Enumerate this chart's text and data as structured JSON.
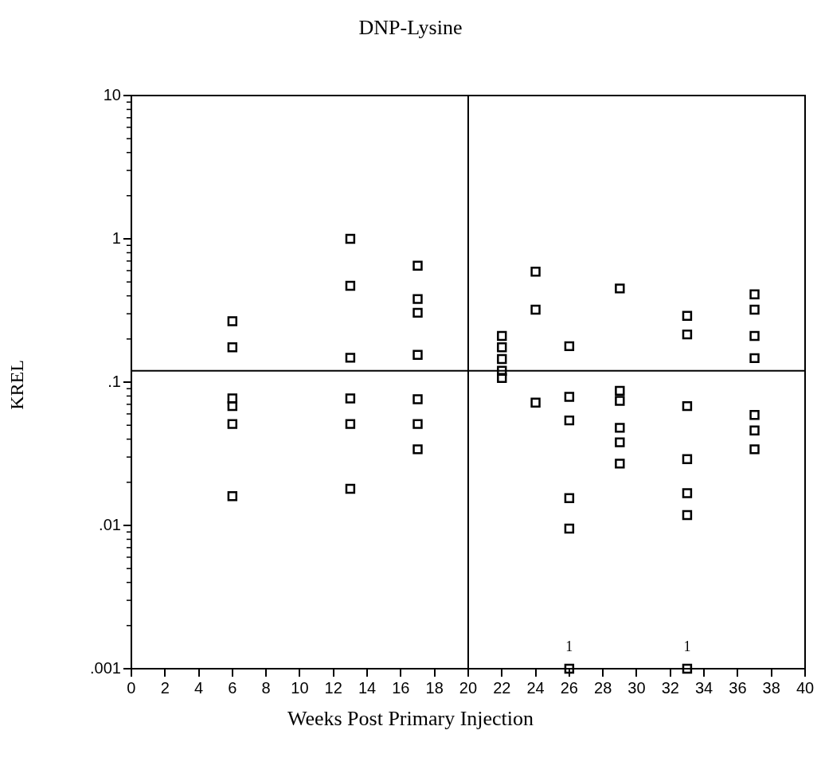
{
  "chart_data": {
    "type": "scatter",
    "title": "DNP-Lysine",
    "xlabel": "Weeks Post Primary Injection",
    "ylabel": "KREL",
    "log": "y",
    "marker": "square",
    "grid": false,
    "legend": false,
    "xlim": [
      0,
      40
    ],
    "xticks": [
      0,
      2,
      4,
      6,
      8,
      10,
      12,
      14,
      16,
      18,
      20,
      22,
      24,
      26,
      28,
      30,
      32,
      34,
      36,
      38,
      40
    ],
    "ylim": [
      0.001,
      10
    ],
    "yticks": [
      {
        "value": 0.001,
        "label": ".001"
      },
      {
        "value": 0.01,
        "label": ".01"
      },
      {
        "value": 0.1,
        "label": ".1"
      },
      {
        "value": 1,
        "label": "1"
      },
      {
        "value": 10,
        "label": "10"
      }
    ],
    "series": [
      {
        "color": "#000000",
        "x": [
          6,
          6,
          6,
          6,
          6,
          6,
          13,
          13,
          13,
          13,
          13,
          13,
          17,
          17,
          17,
          17,
          17,
          17,
          17,
          22,
          22,
          22,
          22,
          22,
          24,
          24,
          24,
          26,
          26,
          26,
          26,
          26,
          26,
          29,
          29,
          29,
          29,
          29,
          29,
          33,
          33,
          33,
          33,
          33,
          33,
          33,
          37,
          37,
          37,
          37,
          37,
          37,
          37
        ],
        "values": [
          0.266,
          0.175,
          0.077,
          0.068,
          0.051,
          0.016,
          1.0,
          0.47,
          0.148,
          0.077,
          0.051,
          0.018,
          0.65,
          0.38,
          0.305,
          0.155,
          0.076,
          0.051,
          0.034,
          0.21,
          0.175,
          0.145,
          0.12,
          0.107,
          0.59,
          0.32,
          0.072,
          0.178,
          0.079,
          0.054,
          0.0155,
          0.0095,
          0.001,
          0.45,
          0.087,
          0.074,
          0.048,
          0.038,
          0.027,
          0.29,
          0.215,
          0.068,
          0.029,
          0.0168,
          0.0118,
          0.001,
          0.41,
          0.32,
          0.21,
          0.147,
          0.059,
          0.046,
          0.034
        ]
      }
    ],
    "ref_lines": [
      {
        "axis": "x",
        "value": 20,
        "color": "#000000"
      },
      {
        "axis": "y",
        "value": 0.12,
        "color": "#000000"
      }
    ],
    "annotations": [
      {
        "text": "1",
        "x": 26,
        "y": 0.001
      },
      {
        "text": "1",
        "x": 33,
        "y": 0.001
      }
    ]
  }
}
